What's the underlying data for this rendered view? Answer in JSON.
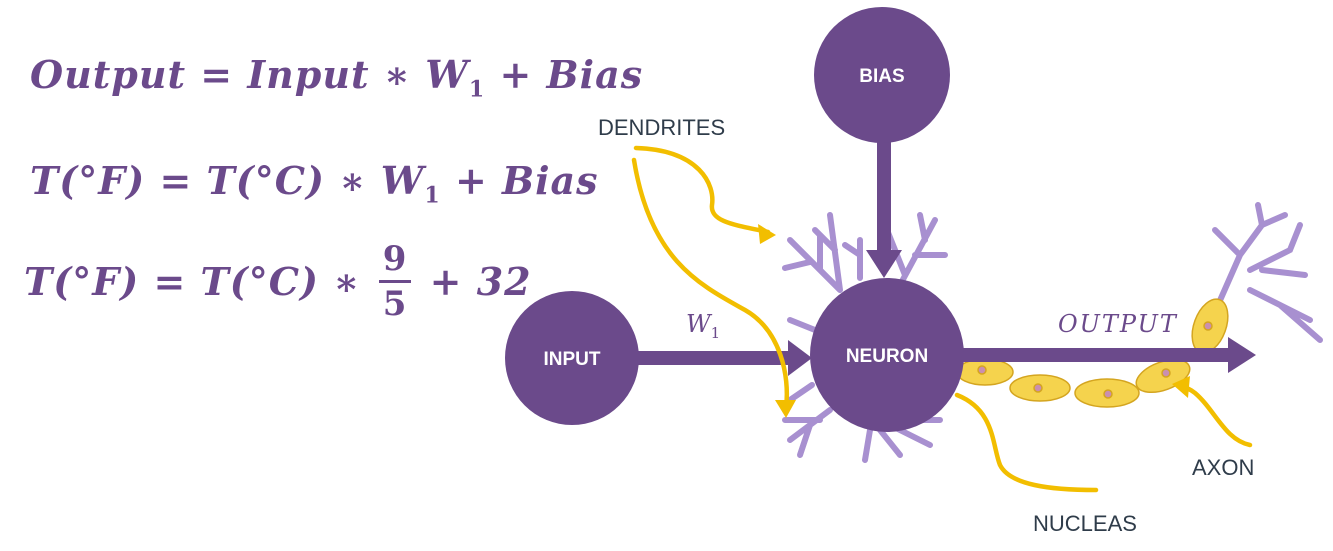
{
  "equations": {
    "eq1": {
      "left": "Output",
      "mid": "= Input  ∗ W",
      "sub": "1",
      "right": "+ Bias"
    },
    "eq2": {
      "left": "T(°F) = T(°C) ∗ W",
      "sub": "1",
      "right": "+ Bias"
    },
    "eq3": {
      "left": "T(°F) = T(°C) ∗",
      "num": "9",
      "den": "5",
      "right": "+ 32"
    }
  },
  "nodes": {
    "bias": "BIAS",
    "input": "INPUT",
    "neuron": "NEURON"
  },
  "edge_labels": {
    "weight": "W",
    "weight_sub": "1",
    "output": "OUTPUT"
  },
  "annotations": {
    "dendrites": "DENDRITES",
    "axon": "AXON",
    "nucleas": "NUCLEAS"
  },
  "colors": {
    "purple": "#6b4a8b",
    "dendrite": "#a890d0",
    "yellow": "#f2be00",
    "axon_cell": "#f5d34d",
    "text": "#2f3c4a"
  }
}
